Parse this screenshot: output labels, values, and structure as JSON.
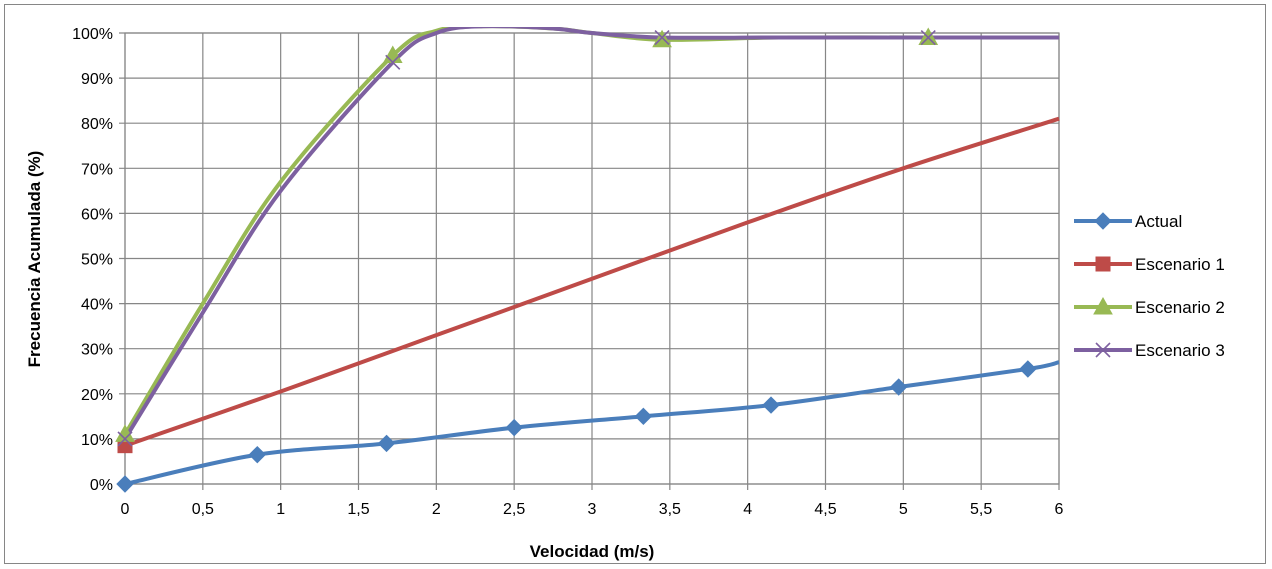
{
  "chart_data": {
    "type": "line",
    "xlabel": "Velocidad (m/s)",
    "ylabel": "Frecuencia Acumulada  (%)",
    "xlim": [
      0,
      6
    ],
    "ylim": [
      0,
      100
    ],
    "x_ticks": [
      "0",
      "0,5",
      "1",
      "1,5",
      "2",
      "2,5",
      "3",
      "3,5",
      "4",
      "4,5",
      "5",
      "5,5",
      "6"
    ],
    "y_ticks": [
      "0%",
      "10%",
      "20%",
      "30%",
      "40%",
      "50%",
      "60%",
      "70%",
      "80%",
      "90%",
      "100%"
    ],
    "grid": true,
    "legend_position": "right",
    "series": [
      {
        "name": "Actual",
        "color": "#4a7ebb",
        "marker": "diamond",
        "x": [
          0,
          0.85,
          1.68,
          2.5,
          3.33,
          4.15,
          4.97,
          5.8,
          6.0
        ],
        "y": [
          0,
          6.5,
          9,
          12.5,
          15,
          17.5,
          21.5,
          25.5,
          27
        ],
        "marker_count": 8
      },
      {
        "name": "Escenario 1",
        "color": "#be4b48",
        "marker": "square",
        "x": [
          0,
          1,
          2,
          3,
          4,
          5,
          6
        ],
        "y": [
          8.5,
          20.5,
          33,
          45.5,
          58,
          70,
          81
        ],
        "marker_count": 1
      },
      {
        "name": "Escenario 2",
        "color": "#98b954",
        "marker": "triangle",
        "x": [
          0,
          0.5,
          1,
          1.72,
          2.0,
          2.3,
          2.75,
          3.0,
          3.45,
          4.2,
          5.16,
          6.0
        ],
        "y": [
          11,
          40,
          67,
          95,
          100.5,
          101.5,
          101,
          100,
          98.5,
          99,
          99,
          99
        ],
        "marker_count": 4
      },
      {
        "name": "Escenario 3",
        "color": "#7d60a0",
        "marker": "x",
        "x": [
          0,
          0.5,
          1,
          1.72,
          2.0,
          2.3,
          2.75,
          3.0,
          3.45,
          4.2,
          5.16,
          6.0
        ],
        "y": [
          10,
          38,
          65,
          93.5,
          100,
          101.5,
          101,
          100,
          99,
          99,
          99,
          99
        ],
        "marker_count": 4
      }
    ]
  }
}
